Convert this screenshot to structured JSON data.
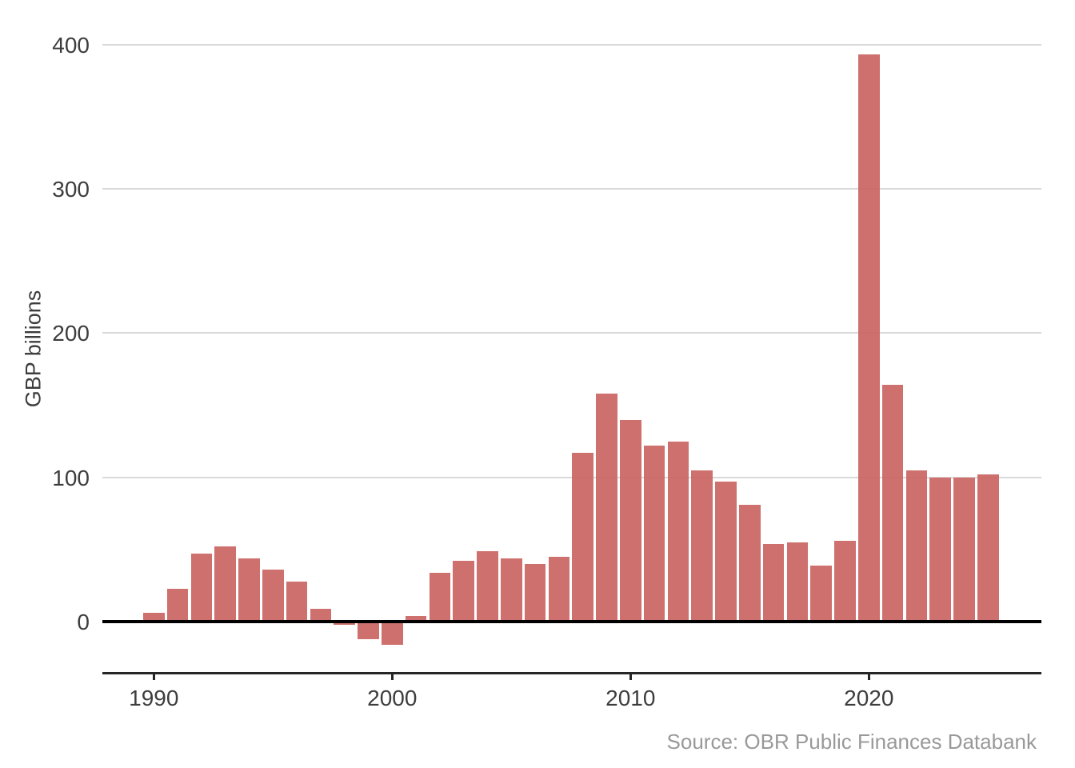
{
  "chart_data": {
    "type": "bar",
    "ylabel": "GBP billions",
    "source": "Source: OBR Public Finances Databank",
    "years": [
      1990,
      1991,
      1992,
      1993,
      1994,
      1995,
      1996,
      1997,
      1998,
      1999,
      2000,
      2001,
      2002,
      2003,
      2004,
      2005,
      2006,
      2007,
      2008,
      2009,
      2010,
      2011,
      2012,
      2013,
      2014,
      2015,
      2016,
      2017,
      2018,
      2019,
      2020,
      2021,
      2022,
      2023,
      2024,
      2025
    ],
    "values": [
      6,
      23,
      47,
      52,
      44,
      36,
      28,
      9,
      -2,
      -12,
      -16,
      4,
      34,
      42,
      49,
      44,
      40,
      45,
      117,
      158,
      140,
      122,
      125,
      105,
      97,
      81,
      54,
      55,
      39,
      56,
      393,
      164,
      105,
      100,
      100,
      102
    ],
    "yticks": [
      0,
      100,
      200,
      300,
      400
    ],
    "xticks": [
      1990,
      2000,
      2010,
      2020
    ],
    "ylim": [
      -36,
      422
    ],
    "grid": "horizontal",
    "legend": "none",
    "colors": {
      "bar": "#ca6461",
      "gridline": "#d9d9d9",
      "zero_line": "#000000",
      "axis_line": "#262626",
      "axis_text": "#3d3d3d",
      "source_text": "#999999",
      "background": "#ffffff"
    }
  }
}
